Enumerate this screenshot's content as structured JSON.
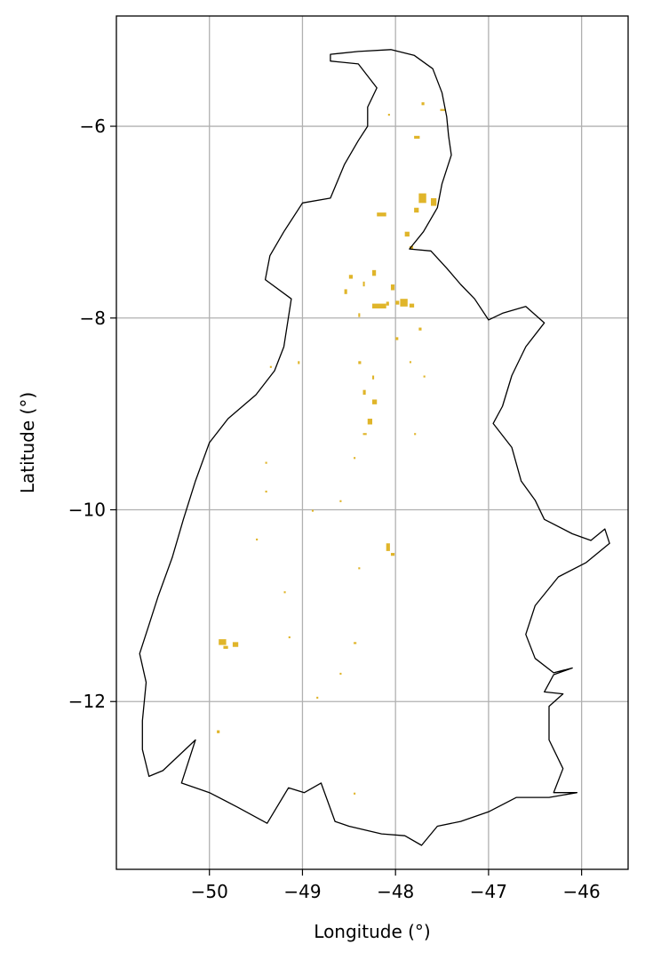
{
  "map": {
    "x_axis": {
      "label": "Longitude (°)",
      "ticks": [
        {
          "value": -50,
          "label": "−50"
        },
        {
          "value": -49,
          "label": "−49"
        },
        {
          "value": -48,
          "label": "−48"
        },
        {
          "value": -47,
          "label": "−47"
        },
        {
          "value": -46,
          "label": "−46"
        }
      ],
      "range": [
        -51.0,
        -45.5
      ]
    },
    "y_axis": {
      "label": "Latitude (°)",
      "ticks": [
        {
          "value": -6,
          "label": "−6"
        },
        {
          "value": -8,
          "label": "−8"
        },
        {
          "value": -10,
          "label": "−10"
        },
        {
          "value": -12,
          "label": "−12"
        }
      ],
      "range": [
        -13.75,
        -4.85
      ]
    },
    "grid": true,
    "colors": {
      "boundary": "#000000",
      "patches": "#e0b52a",
      "grid": "#b0b0b0"
    },
    "boundary": [
      [
        -48.7,
        -5.25
      ],
      [
        -48.4,
        -5.22
      ],
      [
        -48.05,
        -5.2
      ],
      [
        -47.8,
        -5.26
      ],
      [
        -47.6,
        -5.4
      ],
      [
        -47.5,
        -5.65
      ],
      [
        -47.45,
        -5.9
      ],
      [
        -47.43,
        -6.1
      ],
      [
        -47.4,
        -6.3
      ],
      [
        -47.5,
        -6.6
      ],
      [
        -47.55,
        -6.85
      ],
      [
        -47.7,
        -7.1
      ],
      [
        -47.85,
        -7.28
      ],
      [
        -47.62,
        -7.3
      ],
      [
        -47.45,
        -7.48
      ],
      [
        -47.3,
        -7.65
      ],
      [
        -47.15,
        -7.8
      ],
      [
        -47.0,
        -8.02
      ],
      [
        -46.85,
        -7.95
      ],
      [
        -46.6,
        -7.88
      ],
      [
        -46.4,
        -8.05
      ],
      [
        -46.6,
        -8.3
      ],
      [
        -46.75,
        -8.6
      ],
      [
        -46.85,
        -8.92
      ],
      [
        -46.95,
        -9.1
      ],
      [
        -46.75,
        -9.35
      ],
      [
        -46.65,
        -9.7
      ],
      [
        -46.5,
        -9.9
      ],
      [
        -46.4,
        -10.1
      ],
      [
        -46.1,
        -10.25
      ],
      [
        -45.9,
        -10.32
      ],
      [
        -45.75,
        -10.2
      ],
      [
        -45.7,
        -10.35
      ],
      [
        -45.95,
        -10.55
      ],
      [
        -46.25,
        -10.7
      ],
      [
        -46.5,
        -11.0
      ],
      [
        -46.6,
        -11.3
      ],
      [
        -46.5,
        -11.55
      ],
      [
        -46.3,
        -11.7
      ],
      [
        -46.1,
        -11.65
      ],
      [
        -46.3,
        -11.72
      ],
      [
        -46.4,
        -11.9
      ],
      [
        -46.2,
        -11.92
      ],
      [
        -46.35,
        -12.05
      ],
      [
        -46.35,
        -12.4
      ],
      [
        -46.2,
        -12.7
      ],
      [
        -46.3,
        -12.95
      ],
      [
        -46.05,
        -12.95
      ],
      [
        -46.35,
        -13.0
      ],
      [
        -46.7,
        -13.0
      ],
      [
        -47.0,
        -13.15
      ],
      [
        -47.3,
        -13.25
      ],
      [
        -47.55,
        -13.3
      ],
      [
        -47.72,
        -13.5
      ],
      [
        -47.9,
        -13.4
      ],
      [
        -48.15,
        -13.38
      ],
      [
        -48.5,
        -13.3
      ],
      [
        -48.65,
        -13.25
      ],
      [
        -48.8,
        -12.85
      ],
      [
        -48.98,
        -12.95
      ],
      [
        -49.15,
        -12.9
      ],
      [
        -49.38,
        -13.27
      ],
      [
        -49.7,
        -13.1
      ],
      [
        -50.0,
        -12.95
      ],
      [
        -50.3,
        -12.85
      ],
      [
        -50.15,
        -12.4
      ],
      [
        -50.5,
        -12.72
      ],
      [
        -50.65,
        -12.78
      ],
      [
        -50.72,
        -12.5
      ],
      [
        -50.72,
        -12.2
      ],
      [
        -50.68,
        -11.8
      ],
      [
        -50.75,
        -11.5
      ],
      [
        -50.65,
        -11.2
      ],
      [
        -50.55,
        -10.9
      ],
      [
        -50.4,
        -10.5
      ],
      [
        -50.28,
        -10.1
      ],
      [
        -50.15,
        -9.7
      ],
      [
        -50.0,
        -9.3
      ],
      [
        -49.8,
        -9.05
      ],
      [
        -49.5,
        -8.8
      ],
      [
        -49.3,
        -8.55
      ],
      [
        -49.2,
        -8.3
      ],
      [
        -49.12,
        -7.8
      ],
      [
        -49.4,
        -7.6
      ],
      [
        -49.35,
        -7.35
      ],
      [
        -49.2,
        -7.1
      ],
      [
        -49.0,
        -6.8
      ],
      [
        -48.7,
        -6.75
      ],
      [
        -48.55,
        -6.4
      ],
      [
        -48.4,
        -6.15
      ],
      [
        -48.3,
        -6.0
      ],
      [
        -48.3,
        -5.8
      ],
      [
        -48.2,
        -5.6
      ],
      [
        -48.4,
        -5.35
      ],
      [
        -48.7,
        -5.32
      ]
    ],
    "patches": [
      [
        -47.72,
        -5.75,
        0.03,
        0.03
      ],
      [
        -47.52,
        -5.82,
        0.06,
        0.02
      ],
      [
        -47.8,
        -6.1,
        0.06,
        0.03
      ],
      [
        -48.08,
        -5.87,
        0.02,
        0.02
      ],
      [
        -47.75,
        -6.7,
        0.08,
        0.1
      ],
      [
        -47.62,
        -6.75,
        0.06,
        0.08
      ],
      [
        -47.8,
        -6.85,
        0.05,
        0.05
      ],
      [
        -48.2,
        -6.9,
        0.1,
        0.04
      ],
      [
        -47.9,
        -7.1,
        0.05,
        0.05
      ],
      [
        -47.85,
        -7.25,
        0.04,
        0.03
      ],
      [
        -48.25,
        -7.5,
        0.04,
        0.06
      ],
      [
        -48.5,
        -7.55,
        0.04,
        0.04
      ],
      [
        -48.55,
        -7.7,
        0.03,
        0.05
      ],
      [
        -48.35,
        -7.62,
        0.02,
        0.05
      ],
      [
        -48.05,
        -7.65,
        0.04,
        0.06
      ],
      [
        -48.0,
        -7.82,
        0.04,
        0.04
      ],
      [
        -48.25,
        -7.85,
        0.15,
        0.05
      ],
      [
        -48.1,
        -7.83,
        0.03,
        0.04
      ],
      [
        -47.95,
        -7.8,
        0.08,
        0.08
      ],
      [
        -47.85,
        -7.85,
        0.05,
        0.04
      ],
      [
        -48.4,
        -7.95,
        0.02,
        0.04
      ],
      [
        -47.75,
        -8.1,
        0.03,
        0.03
      ],
      [
        -48.0,
        -8.2,
        0.03,
        0.03
      ],
      [
        -48.4,
        -8.45,
        0.03,
        0.03
      ],
      [
        -48.25,
        -8.6,
        0.02,
        0.04
      ],
      [
        -48.35,
        -8.75,
        0.03,
        0.05
      ],
      [
        -48.25,
        -8.85,
        0.05,
        0.05
      ],
      [
        -48.3,
        -9.05,
        0.05,
        0.06
      ],
      [
        -48.35,
        -9.2,
        0.04,
        0.02
      ],
      [
        -47.8,
        -9.2,
        0.02,
        0.02
      ],
      [
        -48.45,
        -9.45,
        0.02,
        0.02
      ],
      [
        -48.1,
        -10.35,
        0.04,
        0.08
      ],
      [
        -48.05,
        -10.45,
        0.04,
        0.03
      ],
      [
        -49.9,
        -11.35,
        0.08,
        0.06
      ],
      [
        -49.75,
        -11.38,
        0.06,
        0.05
      ],
      [
        -49.85,
        -11.42,
        0.05,
        0.03
      ],
      [
        -49.15,
        -11.32,
        0.02,
        0.02
      ],
      [
        -48.45,
        -11.38,
        0.03,
        0.02
      ],
      [
        -48.6,
        -11.7,
        0.02,
        0.02
      ],
      [
        -48.85,
        -11.95,
        0.02,
        0.02
      ],
      [
        -49.92,
        -12.3,
        0.03,
        0.03
      ],
      [
        -48.45,
        -12.95,
        0.02,
        0.02
      ],
      [
        -49.35,
        -8.5,
        0.02,
        0.02
      ],
      [
        -49.05,
        -8.45,
        0.02,
        0.03
      ],
      [
        -49.4,
        -9.8,
        0.02,
        0.02
      ],
      [
        -49.4,
        -9.5,
        0.02,
        0.02
      ],
      [
        -48.9,
        -10.0,
        0.02,
        0.02
      ],
      [
        -49.5,
        -10.3,
        0.02,
        0.02
      ],
      [
        -49.2,
        -10.85,
        0.02,
        0.02
      ],
      [
        -48.6,
        -9.9,
        0.02,
        0.02
      ],
      [
        -48.4,
        -10.6,
        0.02,
        0.02
      ],
      [
        -47.7,
        -8.6,
        0.02,
        0.02
      ],
      [
        -47.85,
        -8.45,
        0.02,
        0.02
      ]
    ]
  }
}
